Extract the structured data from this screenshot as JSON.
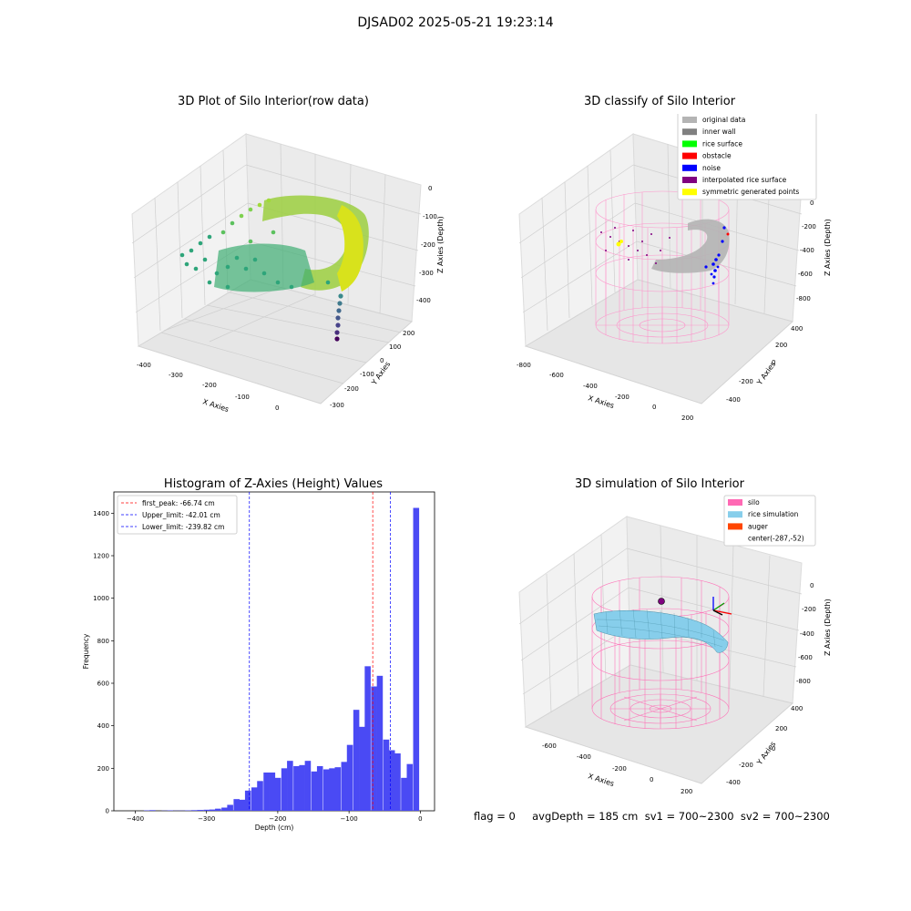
{
  "page": {
    "title": "DJSAD02 2025-05-21 19:23:14",
    "status_line": "flag = 0     avgDepth = 185 cm  sv1 = 700~2300  sv2 = 700~2300"
  },
  "panels": {
    "raw": {
      "title": "3D Plot of Silo Interior(row data)",
      "xlabel": "X Axies",
      "ylabel": "Y Axies",
      "zlabel": "Z Axies (Depth)",
      "x_ticks": [
        "-400",
        "-300",
        "-200",
        "-100",
        "0"
      ],
      "y_ticks": [
        "200",
        "100",
        "0",
        "-100",
        "-200",
        "-300"
      ],
      "z_ticks": [
        "0",
        "-100",
        "-200",
        "-300",
        "-400"
      ]
    },
    "classify": {
      "title": "3D classify of Silo Interior",
      "xlabel": "X Axies",
      "ylabel": "Y Axies",
      "zlabel": "Z Axies (Depth)",
      "x_ticks": [
        "-800",
        "-600",
        "-400",
        "-200",
        "0",
        "200"
      ],
      "y_ticks": [
        "400",
        "200",
        "0",
        "-200",
        "-400"
      ],
      "z_ticks": [
        "0",
        "-200",
        "-400",
        "-600",
        "-800"
      ],
      "legend": [
        {
          "label": "original data",
          "color": "#b4b4b4"
        },
        {
          "label": "inner wall",
          "color": "#808080"
        },
        {
          "label": "rice surface",
          "color": "#00ff00"
        },
        {
          "label": "obstacle",
          "color": "#ff0000"
        },
        {
          "label": "noise",
          "color": "#0000ff"
        },
        {
          "label": "interpolated rice surface",
          "color": "#800080"
        },
        {
          "label": "symmetric generated points",
          "color": "#ffff00"
        }
      ]
    },
    "simulation": {
      "title": "3D simulation of Silo Interior",
      "xlabel": "X Axies",
      "ylabel": "Y Axies",
      "zlabel": "Z Axies (Depth)",
      "x_ticks": [
        "-600",
        "-400",
        "-200",
        "0",
        "200"
      ],
      "y_ticks": [
        "400",
        "200",
        "0",
        "-200",
        "-400"
      ],
      "z_ticks": [
        "0",
        "-200",
        "-400",
        "-600",
        "-800"
      ],
      "legend": [
        {
          "label": "silo",
          "color": "#ff69b4"
        },
        {
          "label": "rice simulation",
          "color": "#87ceeb"
        },
        {
          "label": "auger",
          "color": "#ff4500"
        },
        {
          "label": "center(-287,-52)",
          "color": ""
        }
      ]
    }
  },
  "chart_data": [
    {
      "type": "histogram",
      "title": "Histogram of Z-Axies (Height) Values",
      "xlabel": "Depth (cm)",
      "ylabel": "Frequency",
      "xlim": [
        -430,
        20
      ],
      "ylim": [
        0,
        1500
      ],
      "x_ticks": [
        -400,
        -300,
        -200,
        -100,
        0
      ],
      "y_ticks": [
        0,
        200,
        400,
        600,
        800,
        1000,
        1200,
        1400
      ],
      "bar_color": "#4a4af4",
      "bin_width": 8.4,
      "bins": [
        [
          -388,
          2
        ],
        [
          -380,
          3
        ],
        [
          -363,
          1
        ],
        [
          -355,
          2
        ],
        [
          -346,
          1
        ],
        [
          -338,
          1
        ],
        [
          -330,
          2
        ],
        [
          -321,
          3
        ],
        [
          -313,
          4
        ],
        [
          -304,
          5
        ],
        [
          -296,
          6
        ],
        [
          -288,
          10
        ],
        [
          -279,
          15
        ],
        [
          -271,
          28
        ],
        [
          -262,
          55
        ],
        [
          -254,
          52
        ],
        [
          -246,
          95
        ],
        [
          -237,
          110
        ],
        [
          -229,
          140
        ],
        [
          -220,
          180
        ],
        [
          -212,
          180
        ],
        [
          -204,
          155
        ],
        [
          -195,
          200
        ],
        [
          -187,
          235
        ],
        [
          -178,
          210
        ],
        [
          -170,
          215
        ],
        [
          -162,
          235
        ],
        [
          -153,
          185
        ],
        [
          -145,
          210
        ],
        [
          -136,
          195
        ],
        [
          -128,
          200
        ],
        [
          -120,
          205
        ],
        [
          -111,
          230
        ],
        [
          -103,
          310
        ],
        [
          -94,
          475
        ],
        [
          -86,
          395
        ],
        [
          -78,
          680
        ],
        [
          -69,
          585
        ],
        [
          -61,
          635
        ],
        [
          -52,
          335
        ],
        [
          -44,
          285
        ],
        [
          -36,
          270
        ],
        [
          -27,
          155
        ],
        [
          -19,
          220
        ],
        [
          -10,
          1425
        ]
      ],
      "vlines": [
        {
          "label": "first_peak: -66.74 cm",
          "x": -66.74,
          "color": "#ff0000"
        },
        {
          "label": "Upper_limit: -42.01 cm",
          "x": -42.01,
          "color": "#0000ff"
        },
        {
          "label": "Lower_limit: -239.82 cm",
          "x": -239.82,
          "color": "#0000ff"
        }
      ]
    }
  ]
}
